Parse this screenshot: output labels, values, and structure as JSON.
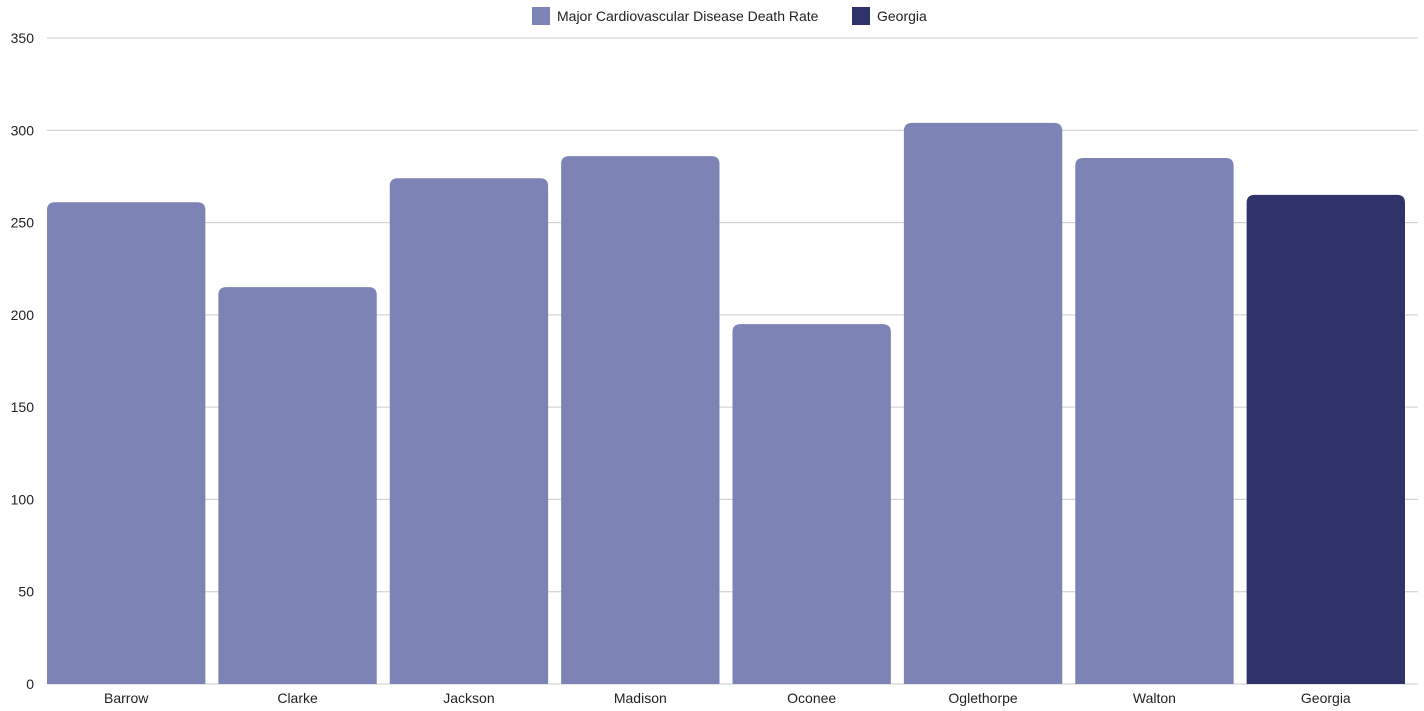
{
  "chart_data": {
    "type": "bar",
    "categories": [
      "Barrow",
      "Clarke",
      "Jackson",
      "Madison",
      "Oconee",
      "Oglethorpe",
      "Walton",
      "Georgia"
    ],
    "series": [
      {
        "name": "Major Cardiovascular Disease Death Rate",
        "color": "#7e83b6",
        "values": [
          261,
          215,
          274,
          286,
          195,
          304,
          285,
          null
        ]
      },
      {
        "name": "Georgia",
        "color": "#2f336a",
        "values": [
          null,
          null,
          null,
          null,
          null,
          null,
          null,
          265
        ]
      }
    ],
    "title": "",
    "xlabel": "",
    "ylabel": "",
    "ylim": [
      0,
      350
    ],
    "yticks": [
      0,
      50,
      100,
      150,
      200,
      250,
      300,
      350
    ],
    "grid": true,
    "legend_position": "top-center"
  }
}
